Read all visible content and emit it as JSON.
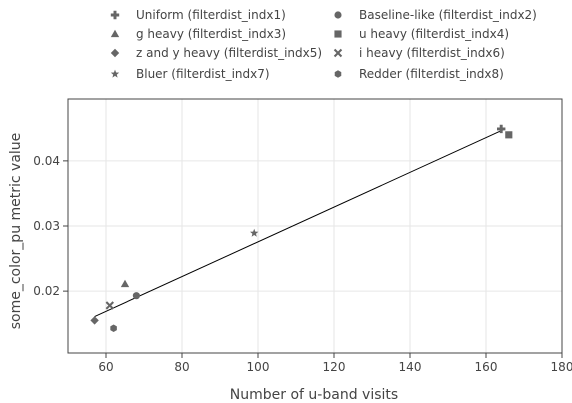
{
  "chart_data": {
    "type": "scatter",
    "xlabel": "Number of u-band visits",
    "ylabel": "some_color_pu metric value",
    "xlim": [
      50,
      180
    ],
    "ylim": [
      0.0105,
      0.0495
    ],
    "xticks": [
      60,
      80,
      100,
      120,
      140,
      160,
      180
    ],
    "yticks": [
      0.02,
      0.03,
      0.04
    ],
    "x_tick_labels": [
      "60",
      "80",
      "100",
      "120",
      "140",
      "160",
      "180"
    ],
    "y_tick_labels": [
      "0.02",
      "0.03",
      "0.04"
    ],
    "grid": true,
    "legend_position": "top",
    "marker_color": "#666666",
    "series": [
      {
        "name": "Uniform (filterdist_indx1)",
        "marker": "plus",
        "x": [
          164
        ],
        "y": [
          0.0449
        ]
      },
      {
        "name": "Baseline-like (filterdist_indx2)",
        "marker": "circle",
        "x": [
          68
        ],
        "y": [
          0.0193
        ]
      },
      {
        "name": "g heavy (filterdist_indx3)",
        "marker": "triangle",
        "x": [
          65
        ],
        "y": [
          0.0211
        ]
      },
      {
        "name": "u heavy (filterdist_indx4)",
        "marker": "square",
        "x": [
          166
        ],
        "y": [
          0.044
        ]
      },
      {
        "name": "z and y heavy (filterdist_indx5)",
        "marker": "diamond",
        "x": [
          57
        ],
        "y": [
          0.0155
        ]
      },
      {
        "name": "i heavy (filterdist_indx6)",
        "marker": "x",
        "x": [
          61
        ],
        "y": [
          0.0178
        ]
      },
      {
        "name": "Bluer (filterdist_indx7)",
        "marker": "star",
        "x": [
          99
        ],
        "y": [
          0.0289
        ]
      },
      {
        "name": "Redder (filterdist_indx8)",
        "marker": "hexagon",
        "x": [
          62
        ],
        "y": [
          0.0143
        ]
      }
    ],
    "trendline": {
      "x": [
        57,
        165
      ],
      "y": [
        0.0161,
        0.0449
      ]
    }
  }
}
